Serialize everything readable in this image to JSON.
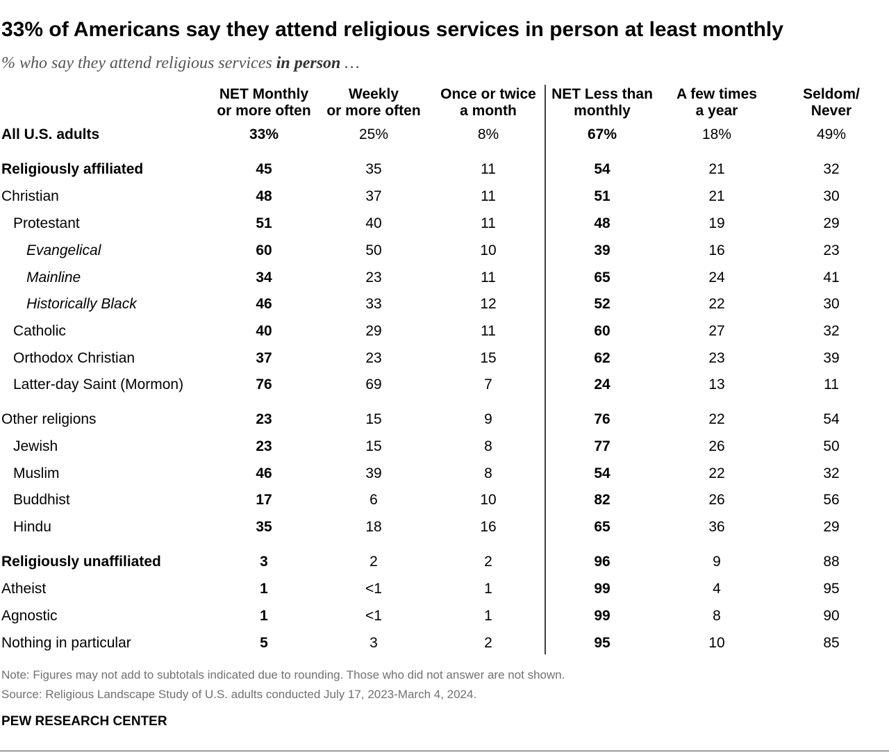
{
  "title": "33% of Americans say they attend religious services in person at least monthly",
  "subtitle_pre": "% who say they attend religious services ",
  "subtitle_emph": "in person",
  "subtitle_post": " …",
  "note": "Note: Figures may not add to subtotals indicated due to rounding. Those who did not answer are not shown.",
  "source": "Source: Religious Landscape Study of U.S. adults conducted July 17, 2023-March 4, 2024.",
  "brand": "PEW RESEARCH CENTER",
  "chart_data": {
    "type": "table",
    "columns": [
      {
        "line1": "NET Monthly",
        "line2": "or more often",
        "bold_values": true
      },
      {
        "line1": "Weekly",
        "line2": "or more often",
        "bold_values": false
      },
      {
        "line1": "Once or twice",
        "line2": "a month",
        "bold_values": false
      },
      {
        "line1": "NET Less than",
        "line2": "monthly",
        "bold_values": true
      },
      {
        "line1": "A few times",
        "line2": "a year",
        "bold_values": false
      },
      {
        "line1": "Seldom/",
        "line2": "Never",
        "bold_values": false
      }
    ],
    "rows": [
      {
        "label": "All U.S. adults",
        "style": "bold",
        "values": [
          "33%",
          "25%",
          "8%",
          "67%",
          "18%",
          "49%"
        ]
      },
      {
        "label": "Religiously affiliated",
        "style": "bold",
        "values": [
          "45",
          "35",
          "11",
          "54",
          "21",
          "32"
        ]
      },
      {
        "label": "Christian",
        "style": "normal",
        "values": [
          "48",
          "37",
          "11",
          "51",
          "21",
          "30"
        ]
      },
      {
        "label": "Protestant",
        "style": "indent1",
        "values": [
          "51",
          "40",
          "11",
          "48",
          "19",
          "29"
        ]
      },
      {
        "label": "Evangelical",
        "style": "indent2-italic",
        "values": [
          "60",
          "50",
          "10",
          "39",
          "16",
          "23"
        ]
      },
      {
        "label": "Mainline",
        "style": "indent2-italic",
        "values": [
          "34",
          "23",
          "11",
          "65",
          "24",
          "41"
        ]
      },
      {
        "label": "Historically Black",
        "style": "indent2-italic",
        "values": [
          "46",
          "33",
          "12",
          "52",
          "22",
          "30"
        ]
      },
      {
        "label": "Catholic",
        "style": "indent1",
        "values": [
          "40",
          "29",
          "11",
          "60",
          "27",
          "32"
        ]
      },
      {
        "label": "Orthodox Christian",
        "style": "indent1",
        "values": [
          "37",
          "23",
          "15",
          "62",
          "23",
          "39"
        ]
      },
      {
        "label": "Latter-day Saint (Mormon)",
        "style": "indent1",
        "values": [
          "76",
          "69",
          "7",
          "24",
          "13",
          "11"
        ]
      },
      {
        "label": "Other religions",
        "style": "normal",
        "values": [
          "23",
          "15",
          "9",
          "76",
          "22",
          "54"
        ]
      },
      {
        "label": "Jewish",
        "style": "indent1",
        "values": [
          "23",
          "15",
          "8",
          "77",
          "26",
          "50"
        ]
      },
      {
        "label": "Muslim",
        "style": "indent1",
        "values": [
          "46",
          "39",
          "8",
          "54",
          "22",
          "32"
        ]
      },
      {
        "label": "Buddhist",
        "style": "indent1",
        "values": [
          "17",
          "6",
          "10",
          "82",
          "26",
          "56"
        ]
      },
      {
        "label": "Hindu",
        "style": "indent1",
        "values": [
          "35",
          "18",
          "16",
          "65",
          "36",
          "29"
        ]
      },
      {
        "label": "Religiously unaffiliated",
        "style": "bold",
        "values": [
          "3",
          "2",
          "2",
          "96",
          "9",
          "88"
        ]
      },
      {
        "label": "Atheist",
        "style": "normal",
        "values": [
          "1",
          "<1",
          "1",
          "99",
          "4",
          "95"
        ]
      },
      {
        "label": "Agnostic",
        "style": "normal",
        "values": [
          "1",
          "<1",
          "1",
          "99",
          "8",
          "90"
        ]
      },
      {
        "label": "Nothing in particular",
        "style": "normal",
        "values": [
          "5",
          "3",
          "2",
          "95",
          "10",
          "85"
        ]
      }
    ]
  }
}
